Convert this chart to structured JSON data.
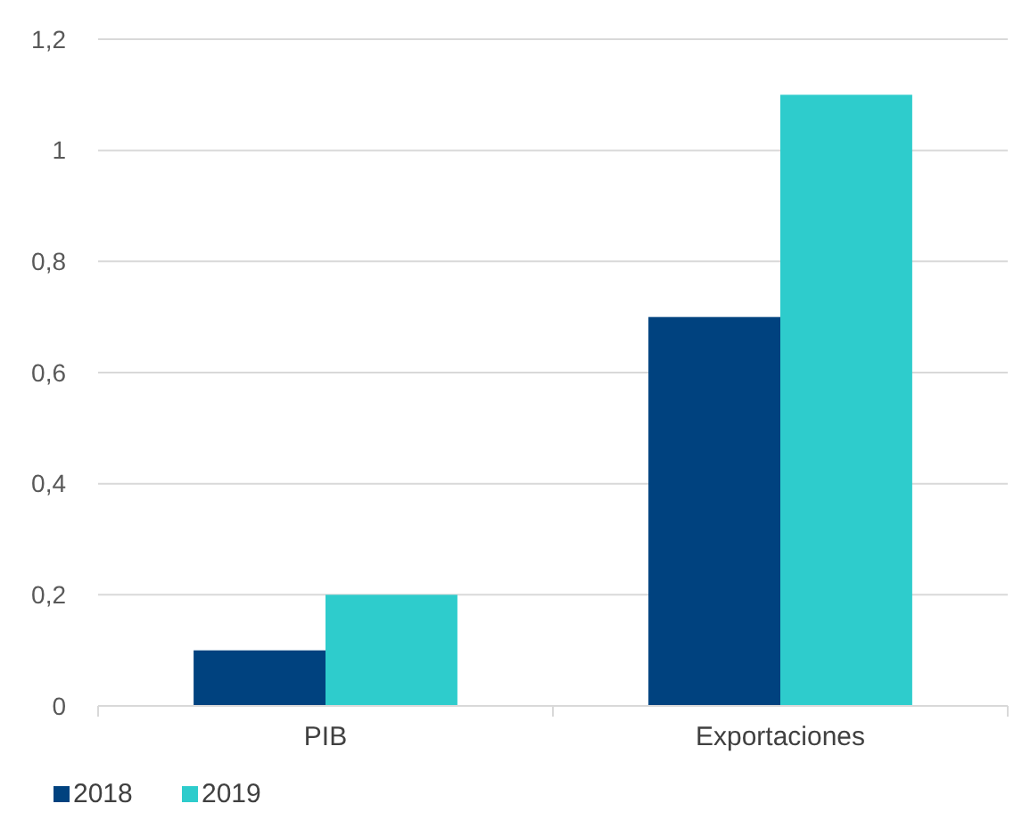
{
  "chart_data": {
    "type": "bar",
    "categories": [
      "PIB",
      "Exportaciones"
    ],
    "series": [
      {
        "name": "2018",
        "color": "#00427f",
        "values": [
          0.1,
          0.7
        ]
      },
      {
        "name": "2019",
        "color": "#2ecccc",
        "values": [
          0.2,
          1.1
        ]
      }
    ],
    "ylim": [
      0,
      1.2
    ],
    "yticks": [
      0,
      {
        "value": 0.2,
        "label": "0,2"
      },
      {
        "value": 0.4,
        "label": "0,4"
      },
      {
        "value": 0.6,
        "label": "0,6"
      },
      {
        "value": 0.8,
        "label": "0,8"
      },
      1,
      {
        "value": 1.2,
        "label": "1,2"
      }
    ],
    "grid": "y",
    "legend": "bottom left"
  }
}
